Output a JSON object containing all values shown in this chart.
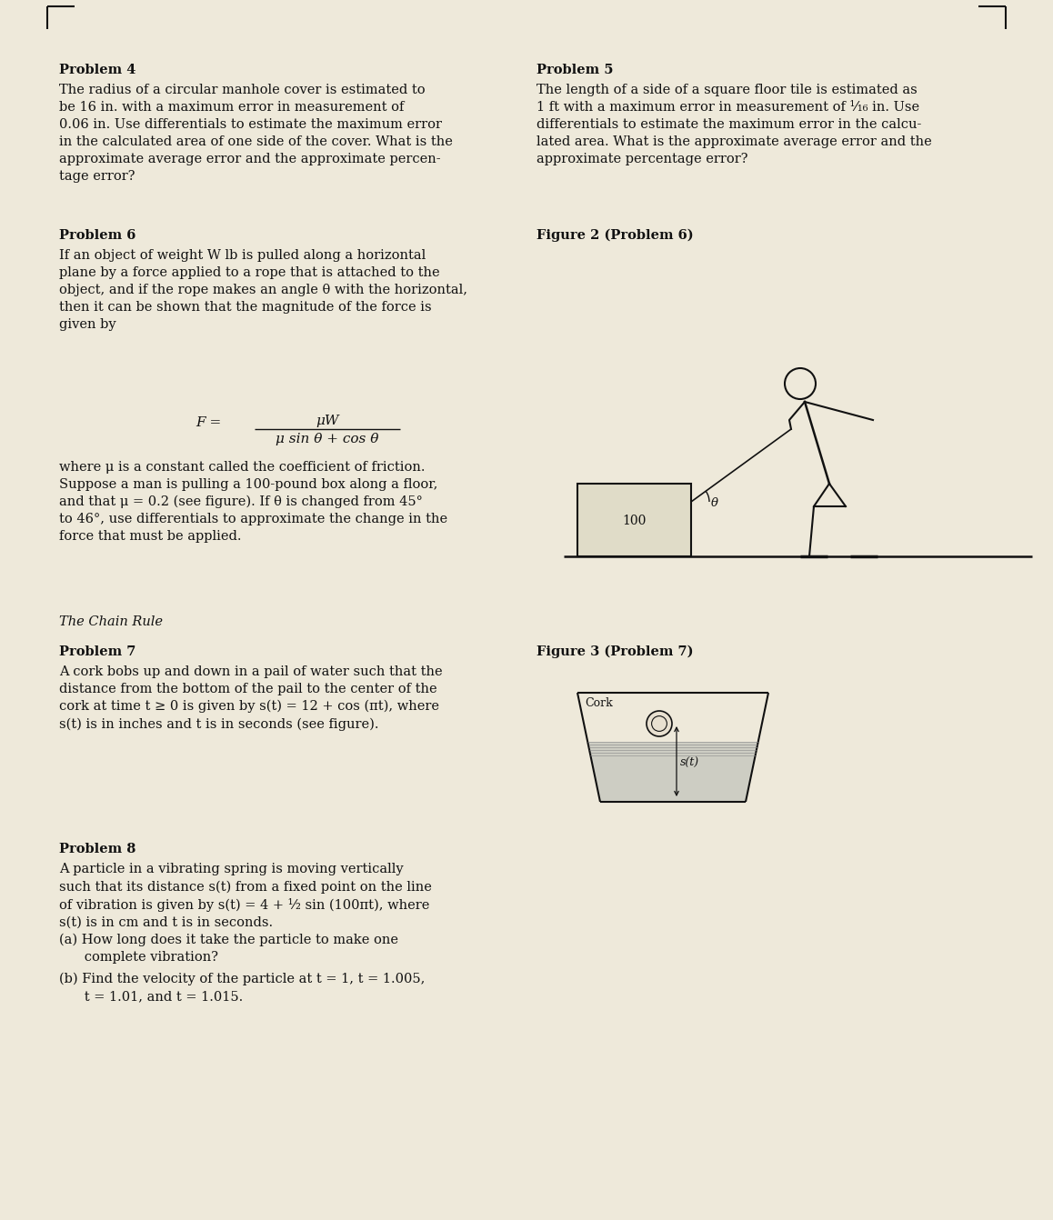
{
  "bg_color": "#eee9da",
  "text_color": "#111111",
  "prob4_label": "Problem 4",
  "prob4_body": "The radius of a circular manhole cover is estimated to\nbe 16 in. with a maximum error in measurement of\n0.06 in. Use differentials to estimate the maximum error\nin the calculated area of one side of the cover. What is the\napproximate average error and the approximate percen-\ntage error?",
  "prob5_label": "Problem 5",
  "prob5_body": "The length of a side of a square floor tile is estimated as\n1 ft with a maximum error in measurement of ¹⁄₁₆ in. Use\ndifferentials to estimate the maximum error in the calcu-\nlated area. What is the approximate average error and the\napproximate percentage error?",
  "prob6_label": "Problem 6",
  "prob6_fig_label": "Figure 2 (Problem 6)",
  "prob6_body": "If an object of weight W lb is pulled along a horizontal\nplane by a force applied to a rope that is attached to the\nobject, and if the rope makes an angle θ with the horizontal,\nthen it can be shown that the magnitude of the force is\ngiven by",
  "prob6_formula_lhs": "F =",
  "prob6_formula_num": "μW",
  "prob6_formula_den": "μ sin θ + cos θ",
  "prob6_body2": "where μ is a constant called the coefficient of friction.\nSuppose a man is pulling a 100-pound box along a floor,\nand that μ = 0.2 (see figure). If θ is changed from 45°\nto 46°, use differentials to approximate the change in the\nforce that must be applied.",
  "chain_rule_label": "The Chain Rule",
  "prob7_label": "Problem 7",
  "prob7_fig_label": "Figure 3 (Problem 7)",
  "prob7_body": "A cork bobs up and down in a pail of water such that the\ndistance from the bottom of the pail to the center of the\ncork at time t ≥ 0 is given by s(t) = 12 + cos (πt), where\ns(t) is in inches and t is in seconds (see figure).",
  "prob8_label": "Problem 8",
  "prob8_body": "A particle in a vibrating spring is moving vertically\nsuch that its distance s(t) from a fixed point on the line\nof vibration is given by s(t) = 4 + ¹⁄₂ sin (100πt), where\ns(t) is in cm and t is in seconds.",
  "prob8_a": "(a) How long does it take the particle to make one\n      complete vibration?",
  "prob8_b": "(b) Find the velocity of the particle at t = 1, t = 1.005,\n      t = 1.01, and t = 1.015."
}
